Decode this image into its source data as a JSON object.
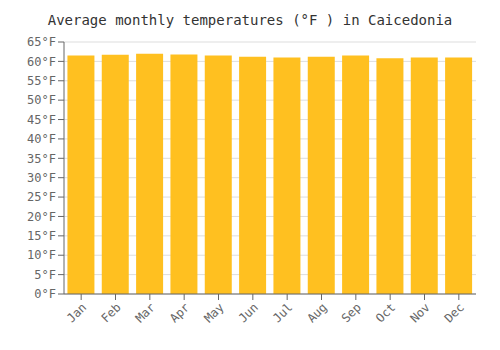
{
  "chart_data": {
    "type": "bar",
    "title": "Average monthly temperatures (°F ) in Caicedonia",
    "categories": [
      "Jan",
      "Feb",
      "Mar",
      "Apr",
      "May",
      "Jun",
      "Jul",
      "Aug",
      "Sep",
      "Oct",
      "Nov",
      "Dec"
    ],
    "values": [
      61.5,
      61.7,
      62.0,
      61.8,
      61.5,
      61.2,
      61.0,
      61.2,
      61.5,
      60.8,
      61.0,
      61.0
    ],
    "color": "#FFC020",
    "ylim": [
      0,
      65
    ],
    "yticks": [
      {
        "value": 0,
        "label": "0°F"
      },
      {
        "value": 5,
        "label": "5°F"
      },
      {
        "value": 10,
        "label": "10°F"
      },
      {
        "value": 15,
        "label": "15°F"
      },
      {
        "value": 20,
        "label": "20°F"
      },
      {
        "value": 25,
        "label": "25°F"
      },
      {
        "value": 30,
        "label": "30°F"
      },
      {
        "value": 35,
        "label": "35°F"
      },
      {
        "value": 40,
        "label": "40°F"
      },
      {
        "value": 45,
        "label": "45°F"
      },
      {
        "value": 50,
        "label": "50°F"
      },
      {
        "value": 55,
        "label": "55°F"
      },
      {
        "value": 60,
        "label": "60°F"
      },
      {
        "value": 65,
        "label": "65°F"
      }
    ],
    "grid": true
  }
}
